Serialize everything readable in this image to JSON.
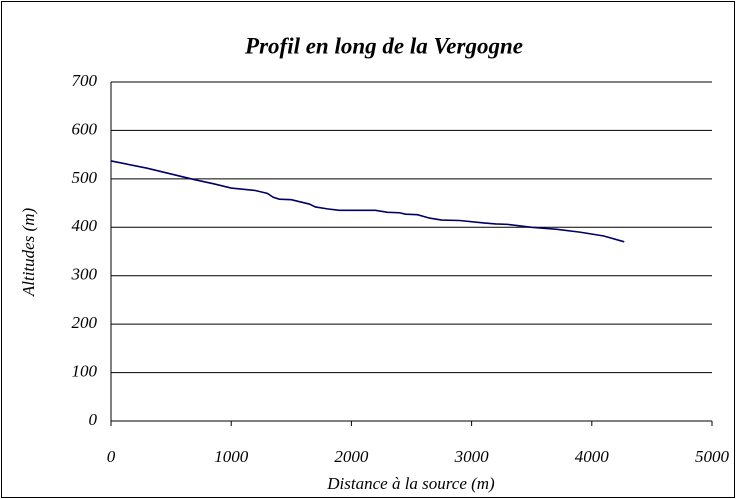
{
  "chart_data": {
    "type": "line",
    "title": "Profil en long de la Vergogne",
    "x_label": "Distance à la source (m)",
    "y_label": "Altitudes (m)",
    "x": [
      0,
      300,
      700,
      850,
      1000,
      1200,
      1300,
      1350,
      1400,
      1500,
      1650,
      1700,
      1800,
      1900,
      2000,
      2200,
      2300,
      2400,
      2450,
      2550,
      2650,
      2750,
      2900,
      3100,
      3200,
      3300,
      3500,
      3700,
      3900,
      4100,
      4270
    ],
    "series": [
      {
        "name": "Altitude",
        "color": "#000066",
        "values": [
          537,
          522,
          498,
          490,
          481,
          476,
          470,
          462,
          458,
          457,
          448,
          442,
          438,
          435,
          435,
          435,
          431,
          430,
          427,
          426,
          419,
          415,
          414,
          409,
          407,
          406,
          400,
          396,
          390,
          382,
          370
        ]
      }
    ],
    "xlim": [
      0,
      5000
    ],
    "xticks": [
      0,
      1000,
      2000,
      3000,
      4000,
      5000
    ],
    "ylim": [
      0,
      700
    ],
    "yticks": [
      0,
      100,
      200,
      300,
      400,
      500,
      600,
      700
    ],
    "grid": true
  }
}
